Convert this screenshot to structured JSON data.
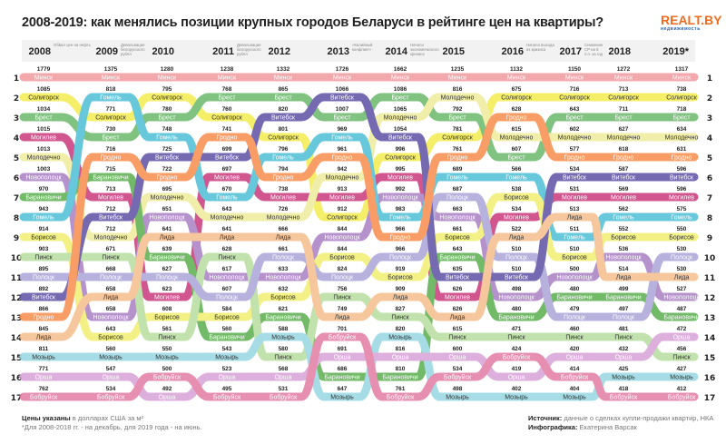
{
  "title": "2008-2019: как менялись позиции крупных городов Беларуси в рейтинге цен на квартиры?",
  "logo": {
    "name": "REALT.BY",
    "sub": "недвижимость"
  },
  "footer": {
    "prices_label": "Цены указаны",
    "prices_text": " в долларах США за м²",
    "note": "*Для 2008-2018 гг. - на декабрь, для 2019 года - на июнь.",
    "source_label": "Источник:",
    "source_text": " данные о сделках купли-продажи квартир, НКА",
    "infographic_label": "Инфографика:",
    "infographic_text": " Екатерина Варсак"
  },
  "chart_data": {
    "type": "bump",
    "ranks": [
      1,
      2,
      3,
      4,
      5,
      6,
      7,
      8,
      9,
      10,
      11,
      12,
      13,
      14,
      15,
      16,
      17
    ],
    "colors": {
      "Минск": "#f29a9e",
      "Солигорск": "#f4ec4f",
      "Брест": "#6bb86b",
      "Могилев": "#c9387c",
      "Молодечно": "#efec9c",
      "Новополоцк": "#a97fc4",
      "Барановичи": "#5aae4e",
      "Гомель": "#4dbfd5",
      "Борисов": "#f1ef72",
      "Пинск": "#b8dd9f",
      "Полоцк": "#aaa5d8",
      "Витебск": "#5e51a5",
      "Гродно": "#f88d4c",
      "Лида": "#f5be8c",
      "Мозырь": "#97d7e1",
      "Орша": "#d8a2d8",
      "Бобруйск": "#e27ca3"
    },
    "years": [
      {
        "year": "2008",
        "note": "Обвал цен на нефть",
        "ranking": [
          [
            "Минск",
            1779
          ],
          [
            "Солигорск",
            1085
          ],
          [
            "Брест",
            1034
          ],
          [
            "Могилев",
            1015
          ],
          [
            "Молодечно",
            1013
          ],
          [
            "Новополоцк",
            1003
          ],
          [
            "Барановичи",
            970
          ],
          [
            "Гомель",
            943
          ],
          [
            "Борисов",
            914
          ],
          [
            "Пинск",
            903
          ],
          [
            "Полоцк",
            895
          ],
          [
            "Витебск",
            892
          ],
          [
            "Гродно",
            866
          ],
          [
            "Лида",
            845
          ],
          [
            "Мозырь",
            811
          ],
          [
            "Орша",
            771
          ],
          [
            "Бобруйск",
            762
          ]
        ]
      },
      {
        "year": "2009",
        "note": "Девальвация белорусского рубля",
        "ranking": [
          [
            "Минск",
            1375
          ],
          [
            "Гомель",
            818
          ],
          [
            "Солигорск",
            771
          ],
          [
            "Брест",
            730
          ],
          [
            "Гродно",
            716
          ],
          [
            "Барановичи",
            715
          ],
          [
            "Могилев",
            713
          ],
          [
            "Витебск",
            712
          ],
          [
            "Молодечно",
            712
          ],
          [
            "Пинск",
            671
          ],
          [
            "Полоцк",
            668
          ],
          [
            "Лида",
            658
          ],
          [
            "Новополоцк",
            658
          ],
          [
            "Борисов",
            643
          ],
          [
            "Мозырь",
            560
          ],
          [
            "Орша",
            547
          ],
          [
            "Бобруйск",
            534
          ]
        ]
      },
      {
        "year": "2010",
        "note": "",
        "ranking": [
          [
            "Минск",
            1280
          ],
          [
            "Солигорск",
            795
          ],
          [
            "Брест",
            780
          ],
          [
            "Гомель",
            748
          ],
          [
            "Витебск",
            725
          ],
          [
            "Гродно",
            722
          ],
          [
            "Молодечно",
            695
          ],
          [
            "Новополоцк",
            651
          ],
          [
            "Лида",
            641
          ],
          [
            "Барановичи",
            639
          ],
          [
            "Полоцк",
            627
          ],
          [
            "Могилев",
            623
          ],
          [
            "Борисов",
            608
          ],
          [
            "Пинск",
            561
          ],
          [
            "Мозырь",
            550
          ],
          [
            "Бобруйск",
            500
          ],
          [
            "Орша",
            492
          ]
        ]
      },
      {
        "year": "2011",
        "note": "Девальвация белорусского рубля",
        "ranking": [
          [
            "Минск",
            1238
          ],
          [
            "Брест",
            768
          ],
          [
            "Солигорск",
            760
          ],
          [
            "Гродно",
            741
          ],
          [
            "Витебск",
            699
          ],
          [
            "Могилев",
            697
          ],
          [
            "Гомель",
            670
          ],
          [
            "Молодечно",
            643
          ],
          [
            "Лида",
            641
          ],
          [
            "Пинск",
            628
          ],
          [
            "Новополоцк",
            617
          ],
          [
            "Полоцк",
            607
          ],
          [
            "Борисов",
            584
          ],
          [
            "Барановичи",
            560
          ],
          [
            "Мозырь",
            543
          ],
          [
            "Орша",
            523
          ],
          [
            "Бобруйск",
            495
          ]
        ]
      },
      {
        "year": "2012",
        "note": "",
        "ranking": [
          [
            "Минск",
            1332
          ],
          [
            "Брест",
            865
          ],
          [
            "Витебск",
            820
          ],
          [
            "Солигорск",
            801
          ],
          [
            "Гомель",
            796
          ],
          [
            "Гродно",
            794
          ],
          [
            "Могилев",
            738
          ],
          [
            "Молодечно",
            726
          ],
          [
            "Лида",
            666
          ],
          [
            "Полоцк",
            661
          ],
          [
            "Новополоцк",
            633
          ],
          [
            "Борисов",
            632
          ],
          [
            "Барановичи",
            621
          ],
          [
            "Мозырь",
            588
          ],
          [
            "Пинск",
            580
          ],
          [
            "Орша",
            568
          ],
          [
            "Бобруйск",
            531
          ]
        ]
      },
      {
        "year": "2013",
        "note": "«Калийный конфликт»",
        "ranking": [
          [
            "Минск",
            1726
          ],
          [
            "Витебск",
            1066
          ],
          [
            "Брест",
            1007
          ],
          [
            "Гомель",
            969
          ],
          [
            "Гродно",
            961
          ],
          [
            "Молодечно",
            942
          ],
          [
            "Могилев",
            913
          ],
          [
            "Солигорск",
            912
          ],
          [
            "Новополоцк",
            844
          ],
          [
            "Борисов",
            844
          ],
          [
            "Полоцк",
            824
          ],
          [
            "Пинск",
            756
          ],
          [
            "Лида",
            749
          ],
          [
            "Бобруйск",
            701
          ],
          [
            "Орша",
            691
          ],
          [
            "Барановичи",
            686
          ],
          [
            "Мозырь",
            647
          ]
        ]
      },
      {
        "year": "2014",
        "note": "Начало экономического кризиса",
        "ranking": [
          [
            "Минск",
            1662
          ],
          [
            "Брест",
            1086
          ],
          [
            "Молодечно",
            1065
          ],
          [
            "Витебск",
            1054
          ],
          [
            "Солигорск",
            996
          ],
          [
            "Могилев",
            995
          ],
          [
            "Новополоцк",
            992
          ],
          [
            "Гомель",
            983
          ],
          [
            "Гродно",
            966
          ],
          [
            "Полоцк",
            966
          ],
          [
            "Борисов",
            919
          ],
          [
            "Лида",
            909
          ],
          [
            "Пинск",
            827
          ],
          [
            "Мозырь",
            820
          ],
          [
            "Орша",
            816
          ],
          [
            "Барановичи",
            810
          ],
          [
            "Бобруйск",
            761
          ]
        ]
      },
      {
        "year": "2015",
        "note": "",
        "ranking": [
          [
            "Минск",
            1235
          ],
          [
            "Молодечно",
            816
          ],
          [
            "Брест",
            792
          ],
          [
            "Солигорск",
            781
          ],
          [
            "Гродно",
            761
          ],
          [
            "Гомель",
            689
          ],
          [
            "Полоцк",
            687
          ],
          [
            "Новополоцк",
            663
          ],
          [
            "Борисов",
            661
          ],
          [
            "Барановичи",
            643
          ],
          [
            "Витебск",
            635
          ],
          [
            "Могилев",
            626
          ],
          [
            "Лида",
            626
          ],
          [
            "Пинск",
            615
          ],
          [
            "Орша",
            600
          ],
          [
            "Бобруйск",
            534
          ],
          [
            "Мозырь",
            498
          ]
        ]
      },
      {
        "year": "2016",
        "note": "Начало выхода из кризиса",
        "ranking": [
          [
            "Минск",
            1132
          ],
          [
            "Солигорск",
            675
          ],
          [
            "Гродно",
            628
          ],
          [
            "Молодечно",
            615
          ],
          [
            "Брест",
            607
          ],
          [
            "Гомель",
            566
          ],
          [
            "Борисов",
            538
          ],
          [
            "Могилев",
            534
          ],
          [
            "Лида",
            522
          ],
          [
            "Полоцк",
            510
          ],
          [
            "Витебск",
            510
          ],
          [
            "Новополоцк",
            498
          ],
          [
            "Барановичи",
            480
          ],
          [
            "Пинск",
            471
          ],
          [
            "Бобруйск",
            424
          ],
          [
            "Орша",
            419
          ],
          [
            "Мозырь",
            402
          ]
        ]
      },
      {
        "year": "2017",
        "note": "Снижение СР на 6 п.п. за год",
        "ranking": [
          [
            "Минск",
            1150
          ],
          [
            "Солигорск",
            716
          ],
          [
            "Брест",
            643
          ],
          [
            "Молодечно",
            602
          ],
          [
            "Гродно",
            577
          ],
          [
            "Витебск",
            534
          ],
          [
            "Могилев",
            531
          ],
          [
            "Лида",
            513
          ],
          [
            "Гомель",
            511
          ],
          [
            "Борисов",
            510
          ],
          [
            "Новополоцк",
            500
          ],
          [
            "Барановичи",
            480
          ],
          [
            "Полоцк",
            479
          ],
          [
            "Пинск",
            460
          ],
          [
            "Орша",
            420
          ],
          [
            "Бобруйск",
            414
          ],
          [
            "Мозырь",
            404
          ]
        ]
      },
      {
        "year": "2018",
        "note": "",
        "ranking": [
          [
            "Минск",
            1272
          ],
          [
            "Солигорск",
            713
          ],
          [
            "Брест",
            711
          ],
          [
            "Молодечно",
            627
          ],
          [
            "Гродно",
            618
          ],
          [
            "Витебск",
            587
          ],
          [
            "Могилев",
            569
          ],
          [
            "Гомель",
            562
          ],
          [
            "Борисов",
            552
          ],
          [
            "Новополоцк",
            536
          ],
          [
            "Лида",
            514
          ],
          [
            "Барановичи",
            499
          ],
          [
            "Полоцк",
            497
          ],
          [
            "Пинск",
            481
          ],
          [
            "Орша",
            432
          ],
          [
            "Мозырь",
            425
          ],
          [
            "Бобруйск",
            418
          ]
        ]
      },
      {
        "year": "2019*",
        "note": "",
        "ranking": [
          [
            "Минск",
            1317
          ],
          [
            "Солигорск",
            738
          ],
          [
            "Брест",
            718
          ],
          [
            "Молодечно",
            634
          ],
          [
            "Гродно",
            631
          ],
          [
            "Витебск",
            596
          ],
          [
            "Могилев",
            596
          ],
          [
            "Гомель",
            575
          ],
          [
            "Борисов",
            550
          ],
          [
            "Полоцк",
            530
          ],
          [
            "Лида",
            530
          ],
          [
            "Новополоцк",
            527
          ],
          [
            "Барановичи",
            487
          ],
          [
            "Орша",
            472
          ],
          [
            "Пинск",
            456
          ],
          [
            "Мозырь",
            427
          ],
          [
            "Бобруйск",
            412
          ]
        ]
      }
    ]
  }
}
